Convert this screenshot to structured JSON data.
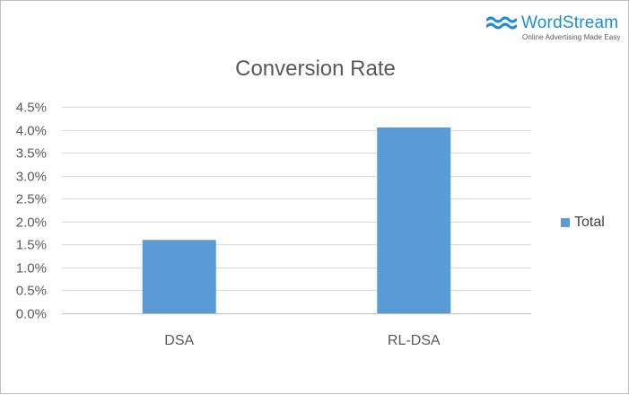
{
  "brand": {
    "name": "WordStream",
    "tagline": "Online Advertising Made Easy",
    "logo_icon": "wave-logo-icon",
    "color": "#1b8ed3"
  },
  "chart_data": {
    "type": "bar",
    "title": "Conversion Rate",
    "categories": [
      "DSA",
      "RL-DSA"
    ],
    "series": [
      {
        "name": "Total",
        "values": [
          0.016,
          0.0405
        ],
        "color": "#5b9bd5"
      }
    ],
    "xlabel": "",
    "ylabel": "",
    "ylim": [
      0,
      0.045
    ],
    "yticks": [
      0,
      0.005,
      0.01,
      0.015,
      0.02,
      0.025,
      0.03,
      0.035,
      0.04,
      0.045
    ],
    "ytick_labels": [
      "0.0%",
      "0.5%",
      "1.0%",
      "1.5%",
      "2.0%",
      "2.5%",
      "3.0%",
      "3.5%",
      "4.0%",
      "4.5%"
    ],
    "grid": true,
    "legend_position": "right"
  }
}
